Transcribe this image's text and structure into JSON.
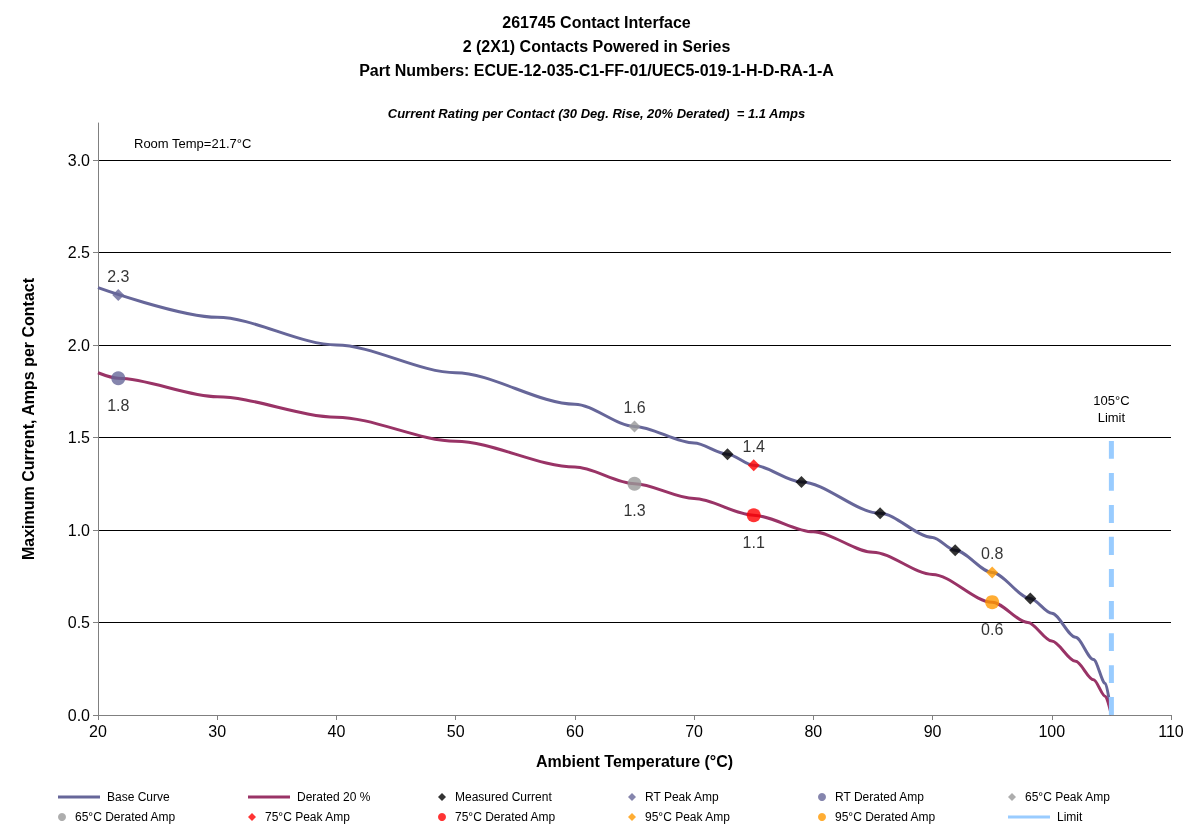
{
  "chart_data": {
    "type": "line",
    "title": "261745 Contact Interface\n2 (2X1) Contacts Powered in Series\nPart Numbers: ECUE-12-035-C1-FF-01/UEC5-019-1-H-D-RA-1-A",
    "subtitle": "Current Rating per Contact (30 Deg. Rise, 20% Derated)  = 1.1 Amps",
    "xlabel": "Ambient Temperature (°C)",
    "ylabel": "Maximum Current, Amps per Contact",
    "annotations": [
      "Room Temp=21.7°C",
      {
        "text": "105°C\nLimit",
        "x": 105,
        "y": 1.5
      }
    ],
    "xlim": [
      20,
      110
    ],
    "xticks": [
      20,
      30,
      40,
      50,
      60,
      70,
      80,
      90,
      100,
      110
    ],
    "ylim": [
      0,
      3.2
    ],
    "yticks": [
      {
        "value": 0,
        "label": "0.0"
      },
      {
        "value": 0.5,
        "label": "0.5"
      },
      {
        "value": 1,
        "label": "1.0"
      },
      {
        "value": 1.5,
        "label": "1.5"
      },
      {
        "value": 2,
        "label": "2.0"
      },
      {
        "value": 2.5,
        "label": "2.5"
      },
      {
        "value": 3,
        "label": "3.0"
      }
    ],
    "grid": "y",
    "legend": "bottom",
    "series": [
      {
        "name": "Base Curve",
        "marker": "none",
        "color": "#666699",
        "x": [
          20,
          30,
          40,
          50,
          60,
          65,
          70,
          72.8,
          75,
          79,
          85.6,
          90,
          91.9,
          95,
          98.2,
          100,
          102,
          103.5,
          104.5,
          105
        ],
        "values": [
          2.31,
          2.15,
          2.0,
          1.85,
          1.68,
          1.56,
          1.47,
          1.41,
          1.35,
          1.26,
          1.09,
          0.96,
          0.89,
          0.77,
          0.63,
          0.55,
          0.42,
          0.3,
          0.17,
          0
        ]
      },
      {
        "name": "Derated 20 %",
        "marker": "none",
        "color": "#993366",
        "x": [
          20,
          21.7,
          30,
          40,
          50,
          60,
          65,
          70,
          75,
          80,
          85,
          90,
          95,
          98,
          100,
          102,
          103.5,
          104.5,
          105
        ],
        "values": [
          1.85,
          1.82,
          1.72,
          1.61,
          1.48,
          1.34,
          1.25,
          1.17,
          1.08,
          0.99,
          0.88,
          0.76,
          0.61,
          0.5,
          0.4,
          0.29,
          0.19,
          0.1,
          0
        ]
      },
      {
        "name": "Measured Current",
        "type": "scatter",
        "marker": "diamond",
        "color": "#000000",
        "x": [
          72.8,
          79,
          85.6,
          91.9,
          98.2
        ],
        "values": [
          1.41,
          1.26,
          1.09,
          0.89,
          0.63
        ]
      },
      {
        "name": "RT Peak Amp",
        "type": "scatter",
        "marker": "diamond",
        "color": "#666699",
        "x": [
          21.7
        ],
        "values": [
          2.27
        ],
        "value_labels": [
          "2.3"
        ]
      },
      {
        "name": "RT Derated Amp",
        "type": "scatter",
        "marker": "circle",
        "color": "#666699",
        "x": [
          21.7
        ],
        "values": [
          1.82
        ],
        "value_labels": [
          "1.8"
        ]
      },
      {
        "name": "65°C Peak Amp",
        "type": "scatter",
        "marker": "diamond",
        "color": "#999999",
        "x": [
          65
        ],
        "values": [
          1.56
        ],
        "value_labels": [
          "1.6"
        ]
      },
      {
        "name": "65°C Derated Amp",
        "type": "scatter",
        "marker": "circle",
        "color": "#999999",
        "x": [
          65
        ],
        "values": [
          1.25
        ],
        "value_labels": [
          "1.3"
        ]
      },
      {
        "name": "75°C Peak Amp",
        "type": "scatter",
        "marker": "diamond",
        "color": "#ff0000",
        "x": [
          75
        ],
        "values": [
          1.35
        ],
        "value_labels": [
          "1.4"
        ]
      },
      {
        "name": "75°C Derated Amp",
        "type": "scatter",
        "marker": "circle",
        "color": "#ff0000",
        "x": [
          75
        ],
        "values": [
          1.08
        ],
        "value_labels": [
          "1.1"
        ]
      },
      {
        "name": "95°C Peak Amp",
        "type": "scatter",
        "marker": "diamond",
        "color": "#ff9900",
        "x": [
          95
        ],
        "values": [
          0.77
        ],
        "value_labels": [
          "0.8"
        ]
      },
      {
        "name": "95°C Derated Amp",
        "type": "scatter",
        "marker": "circle",
        "color": "#ff9900",
        "x": [
          95
        ],
        "values": [
          0.61
        ],
        "value_labels": [
          "0.6"
        ]
      },
      {
        "name": "Limit",
        "marker": "none",
        "line_style": "dashed",
        "color": "#99ccff",
        "x": [
          105,
          105
        ],
        "values": [
          0,
          1.5
        ]
      }
    ]
  }
}
